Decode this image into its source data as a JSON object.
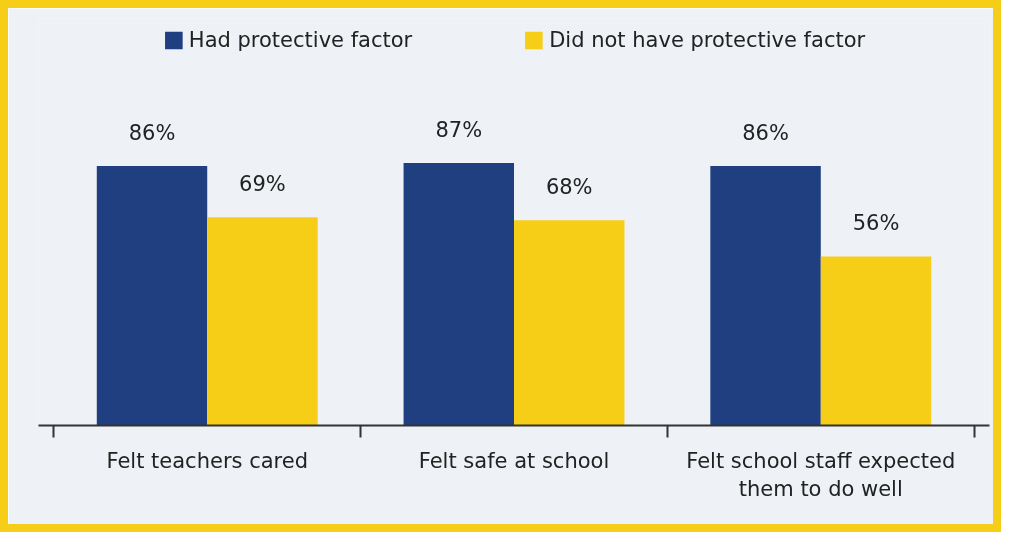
{
  "chart_data": {
    "type": "bar",
    "categories": [
      "Felt teachers cared",
      "Felt safe at school",
      "Felt school staff expected them to do well"
    ],
    "series": [
      {
        "name": "Had protective factor",
        "color": "#1f3f80",
        "values": [
          86,
          87,
          86
        ],
        "value_labels": [
          "86%",
          "87%",
          "86%"
        ]
      },
      {
        "name": "Did not have protective factor",
        "color": "#f6cd17",
        "values": [
          69,
          68,
          56
        ],
        "value_labels": [
          "69%",
          "68%",
          "56%"
        ]
      }
    ],
    "legend": "top",
    "tick_labels": "x"
  }
}
